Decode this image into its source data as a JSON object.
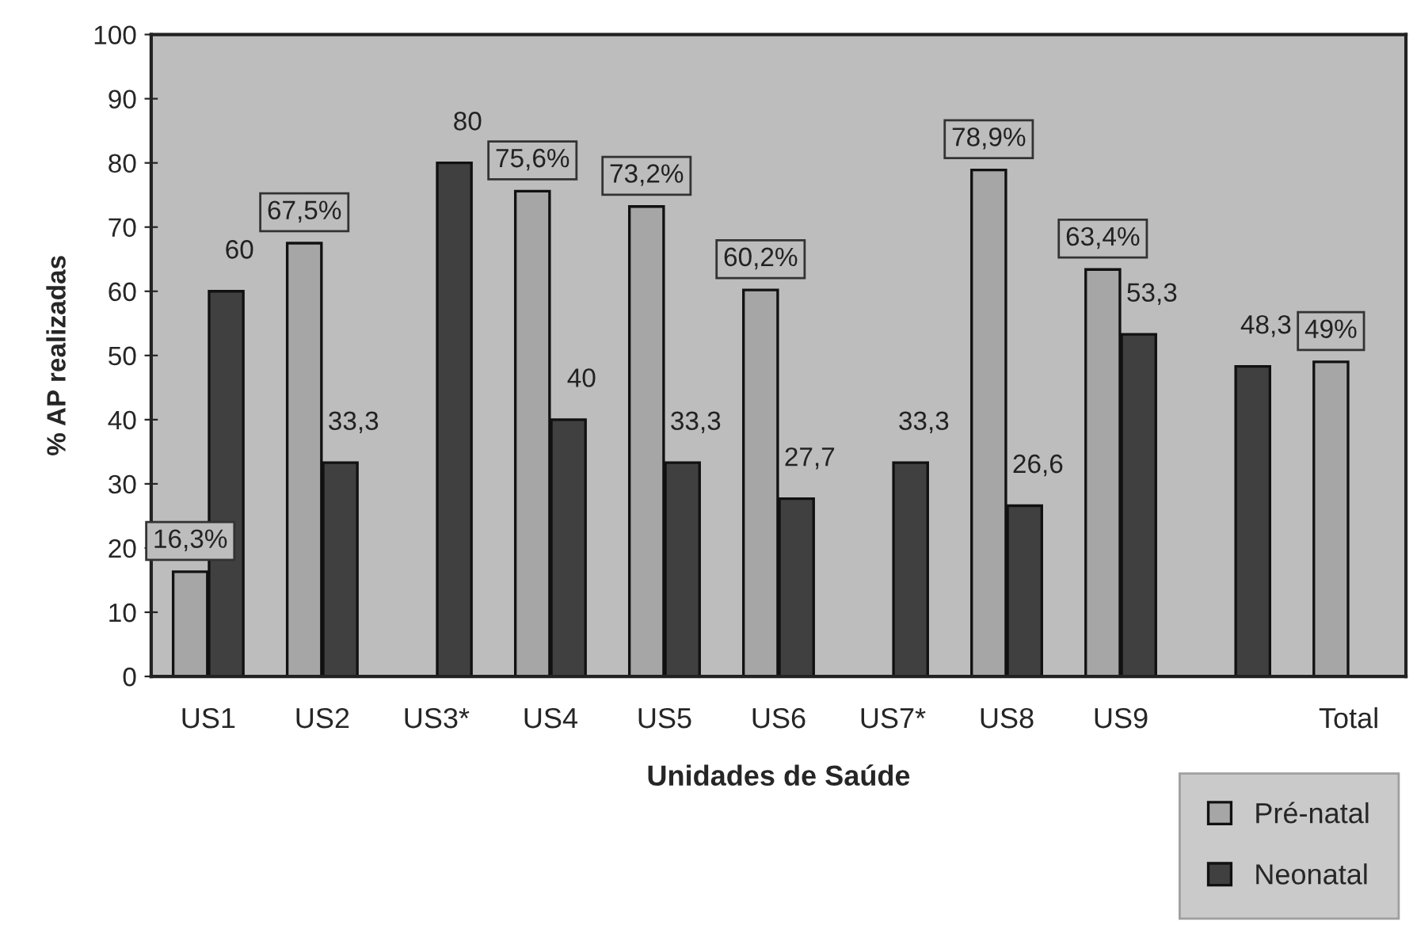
{
  "chart_data": {
    "type": "bar",
    "xlabel": "Unidades de Saúde",
    "ylabel": "% AP realizadas",
    "categories": [
      "US1",
      "US2",
      "US3*",
      "US4",
      "US5",
      "US6",
      "US7*",
      "US8",
      "US9",
      null,
      "Total"
    ],
    "series": [
      {
        "name": "Pré-natal",
        "color": "#a6a6a6",
        "values": [
          16.3,
          67.5,
          null,
          75.6,
          73.2,
          60.2,
          null,
          78.9,
          63.4,
          null,
          49
        ],
        "value_labels": [
          "16,3%",
          "67,5%",
          null,
          "75,6%",
          "73,2%",
          "60,2%",
          null,
          "78,9%",
          "63,4%",
          null,
          "49%"
        ]
      },
      {
        "name": "Neonatal",
        "color": "#404040",
        "values": [
          60,
          33.3,
          80,
          40,
          33.3,
          27.7,
          33.3,
          26.6,
          53.3,
          48.3,
          null
        ],
        "value_labels": [
          "60",
          "33,3",
          "80",
          "40",
          "33,3",
          "27,7",
          "33,3",
          "26,6",
          "53,3",
          "48,3",
          null
        ]
      }
    ],
    "ylim": [
      0,
      100
    ],
    "yticks": [
      0,
      10,
      20,
      30,
      40,
      50,
      60,
      70,
      80,
      90,
      100
    ],
    "grid": false,
    "legend": "bottom right"
  }
}
